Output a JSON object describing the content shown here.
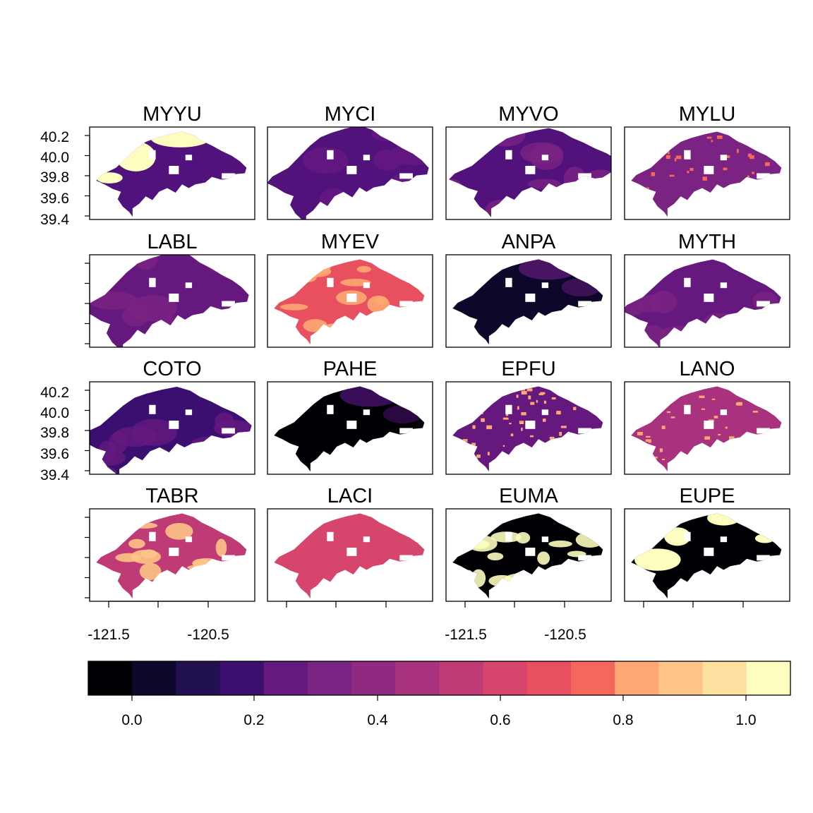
{
  "figure": {
    "panels": [
      {
        "title": "MYYU",
        "base": 0.24,
        "accent": 1.0,
        "accent_region": "north"
      },
      {
        "title": "MYCI",
        "base": 0.22,
        "accent": 0.28,
        "accent_region": "patches"
      },
      {
        "title": "MYVO",
        "base": 0.26,
        "accent": 0.34,
        "accent_region": "patches"
      },
      {
        "title": "MYLU",
        "base": 0.33,
        "accent": 0.72,
        "accent_region": "speckle"
      },
      {
        "title": "LABL",
        "base": 0.3,
        "accent": 0.36,
        "accent_region": "patches"
      },
      {
        "title": "MYEV",
        "base": 0.62,
        "accent": 0.8,
        "accent_region": "blobs"
      },
      {
        "title": "ANPA",
        "base": 0.06,
        "accent": 0.3,
        "accent_region": "northeast"
      },
      {
        "title": "MYTH",
        "base": 0.27,
        "accent": 0.33,
        "accent_region": "patches"
      },
      {
        "title": "COTO",
        "base": 0.2,
        "accent": 0.3,
        "accent_region": "patches"
      },
      {
        "title": "PAHE",
        "base": 0.02,
        "accent": 0.25,
        "accent_region": "northeast"
      },
      {
        "title": "EPFU",
        "base": 0.28,
        "accent": 0.82,
        "accent_region": "speckle"
      },
      {
        "title": "LANO",
        "base": 0.48,
        "accent": 0.82,
        "accent_region": "speckle"
      },
      {
        "title": "TABR",
        "base": 0.52,
        "accent": 0.86,
        "accent_region": "blobs"
      },
      {
        "title": "LACI",
        "base": 0.6,
        "accent": 0.6,
        "accent_region": "none"
      },
      {
        "title": "EUMA",
        "base": 0.0,
        "accent": 1.0,
        "accent_region": "blobs"
      },
      {
        "title": "EUPE",
        "base": 0.0,
        "accent": 1.0,
        "accent_region": "west"
      }
    ],
    "y_ticks": [
      "40.2",
      "40.0",
      "39.8",
      "39.6",
      "39.4"
    ],
    "x_ticks": [
      "-121.5",
      "-120.5"
    ],
    "colorbar": {
      "ticks": [
        "0.0",
        "0.2",
        "0.4",
        "0.6",
        "0.8",
        "1.0"
      ],
      "colors": [
        "#000004",
        "#0d0829",
        "#221150",
        "#3b0f70",
        "#51127c",
        "#65197f",
        "#7b2382",
        "#902a81",
        "#a8327d",
        "#be3b76",
        "#d6456c",
        "#e8505f",
        "#f4685c",
        "#fb8761",
        "#fea772",
        "#fec487",
        "#fddf9f",
        "#fcfdbf"
      ]
    }
  }
}
